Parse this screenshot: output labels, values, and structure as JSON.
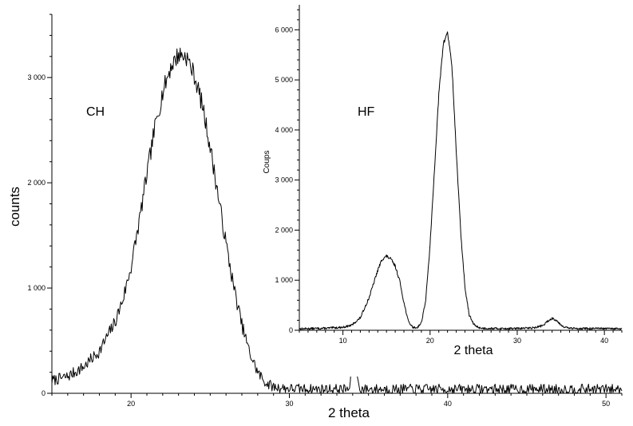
{
  "chart_data": [
    {
      "type": "line",
      "panel": "main",
      "label": "CH",
      "xlabel": "2 theta",
      "ylabel": "counts",
      "xlim": [
        15,
        51
      ],
      "ylim": [
        0,
        3600
      ],
      "x_ticks": [
        20,
        30,
        40,
        50
      ],
      "x_tick_labels": [
        "20",
        "30",
        "40",
        "50"
      ],
      "y_ticks": [
        0,
        1000,
        2000,
        3000
      ],
      "y_tick_labels": [
        "0",
        "1 000",
        "2 000",
        "3 000"
      ],
      "grid": false,
      "noise_amplitude": 70,
      "series": [
        {
          "x": [
            15,
            16,
            17,
            18,
            19,
            19.5,
            20,
            20.5,
            21,
            21.5,
            22,
            22.5,
            23,
            23.5,
            24,
            24.5,
            25,
            25.5,
            26,
            26.5,
            27,
            27.5,
            28,
            28.5,
            29,
            30,
            31,
            32,
            33,
            33.8,
            34,
            34.2,
            34.4,
            35,
            40,
            45,
            51
          ],
          "y": [
            120,
            160,
            250,
            400,
            680,
            900,
            1200,
            1620,
            2080,
            2520,
            2860,
            3100,
            3220,
            3200,
            3020,
            2740,
            2340,
            1880,
            1420,
            1000,
            650,
            380,
            200,
            100,
            60,
            45,
            42,
            40,
            40,
            40,
            340,
            350,
            40,
            40,
            40,
            40,
            40
          ]
        }
      ]
    },
    {
      "type": "line",
      "panel": "inset",
      "label": "HF",
      "xlabel": "2 theta",
      "ylabel": "Coups",
      "xlim": [
        5,
        42
      ],
      "ylim": [
        0,
        6500
      ],
      "x_ticks": [
        10,
        20,
        30,
        40
      ],
      "x_tick_labels": [
        "10",
        "20",
        "30",
        "40"
      ],
      "y_ticks": [
        0,
        1000,
        2000,
        3000,
        4000,
        5000,
        6000
      ],
      "y_tick_labels": [
        "0",
        "1 000",
        "2 000",
        "3 000",
        "4 000",
        "5 000",
        "6 000"
      ],
      "grid": false,
      "noise_amplitude": 30,
      "series": [
        {
          "x": [
            5,
            8,
            10,
            11,
            12,
            13,
            14,
            14.5,
            15,
            15.5,
            16,
            16.5,
            17,
            17.5,
            18,
            18.5,
            19,
            19.5,
            20,
            20.5,
            21,
            21.5,
            22,
            22.5,
            23,
            23.5,
            24,
            24.5,
            25,
            25.5,
            26,
            28,
            30,
            32,
            33,
            33.5,
            34,
            34.5,
            35,
            35.5,
            36,
            38,
            42
          ],
          "y": [
            30,
            40,
            60,
            100,
            250,
            650,
            1200,
            1420,
            1480,
            1420,
            1280,
            1000,
            550,
            180,
            60,
            50,
            150,
            600,
            1700,
            3200,
            4700,
            5700,
            5960,
            5300,
            3600,
            2000,
            850,
            300,
            120,
            60,
            40,
            35,
            35,
            50,
            100,
            180,
            240,
            200,
            110,
            60,
            40,
            35,
            30
          ]
        }
      ]
    }
  ]
}
